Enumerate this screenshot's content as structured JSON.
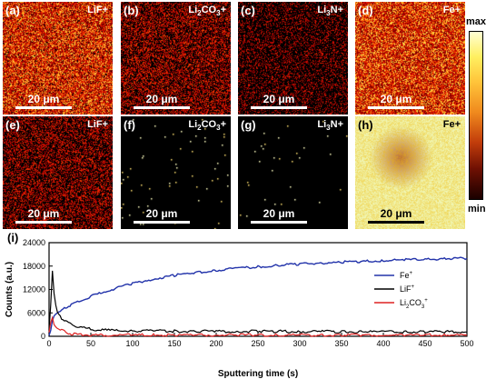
{
  "colorbar": {
    "max_label": "max",
    "min_label": "min"
  },
  "maps": [
    {
      "label": "(a)",
      "ion": "LiF+",
      "ion_html": "LiF+",
      "scale": "20 μm",
      "density": 0.95,
      "mode": "hot",
      "dark_text": false
    },
    {
      "label": "(b)",
      "ion": "Li2CO3+",
      "ion_html": "Li<sub style='font-size:8px'>2</sub>CO<sub style='font-size:8px'>3</sub>+",
      "scale": "20 μm",
      "density": 0.55,
      "mode": "hot",
      "dark_text": false
    },
    {
      "label": "(c)",
      "ion": "Li3N+",
      "ion_html": "Li<sub style='font-size:8px'>3</sub>N+",
      "scale": "20 μm",
      "density": 0.35,
      "mode": "hot",
      "dark_text": false
    },
    {
      "label": "(d)",
      "ion": "Fe+",
      "ion_html": "Fe+",
      "scale": "20 μm",
      "density": 1.0,
      "mode": "hot",
      "dark_text": false
    },
    {
      "label": "(e)",
      "ion": "LiF+",
      "ion_html": "LiF+",
      "scale": "20 μm",
      "density": 0.5,
      "mode": "hot",
      "dark_text": false
    },
    {
      "label": "(f)",
      "ion": "Li2CO3+",
      "ion_html": "Li<sub style='font-size:8px'>2</sub>CO<sub style='font-size:8px'>3</sub>+",
      "scale": "20 μm",
      "density": 0.004,
      "mode": "sparse",
      "dark_text": false
    },
    {
      "label": "(g)",
      "ion": "Li3N+",
      "ion_html": "Li<sub style='font-size:8px'>3</sub>N+",
      "scale": "20 μm",
      "density": 0.002,
      "mode": "sparse",
      "dark_text": false
    },
    {
      "label": "(h)",
      "ion": "Fe+",
      "ion_html": "Fe+",
      "scale": "20 μm",
      "density": 1.0,
      "mode": "bright",
      "dark_text": true
    }
  ],
  "chart_data": {
    "type": "line",
    "panel_label": "(i)",
    "xlabel": "Sputtering time (s)",
    "ylabel": "Counts (a.u.)",
    "xlim": [
      0,
      500
    ],
    "ylim": [
      0,
      24000
    ],
    "xticks": [
      0,
      50,
      100,
      150,
      200,
      250,
      300,
      350,
      400,
      450,
      500
    ],
    "yticks": [
      0,
      6000,
      12000,
      18000,
      24000
    ],
    "legend_position": "right",
    "x": [
      0,
      2,
      4,
      6,
      8,
      10,
      15,
      20,
      25,
      30,
      40,
      50,
      60,
      75,
      100,
      125,
      150,
      175,
      200,
      225,
      250,
      275,
      300,
      325,
      350,
      375,
      400,
      425,
      450,
      475,
      500
    ],
    "series": [
      {
        "name": "Fe+",
        "color": "#2233aa",
        "values": [
          200,
          1500,
          4000,
          5200,
          5700,
          6000,
          6700,
          7300,
          7900,
          8400,
          9300,
          10200,
          11000,
          12000,
          13500,
          14700,
          15600,
          16300,
          16900,
          17400,
          17800,
          18200,
          18500,
          18800,
          19000,
          19200,
          19400,
          19600,
          19750,
          19900,
          20000
        ]
      },
      {
        "name": "LiF+",
        "color": "#000000",
        "values": [
          1500,
          8000,
          16800,
          11000,
          8000,
          6200,
          4500,
          3800,
          3200,
          2800,
          2200,
          1800,
          1600,
          1500,
          1400,
          1350,
          1300,
          1300,
          1250,
          1250,
          1300,
          1250,
          1200,
          1200,
          1200,
          1200,
          1150,
          1150,
          1150,
          1150,
          1100
        ]
      },
      {
        "name": "Li2CO3+",
        "color": "#dd2222",
        "values": [
          1000,
          3500,
          4800,
          3000,
          2400,
          2000,
          1500,
          1000,
          700,
          500,
          400,
          300,
          300,
          300,
          300,
          300,
          300,
          300,
          300,
          300,
          300,
          300,
          300,
          300,
          300,
          300,
          300,
          300,
          300,
          300,
          300
        ]
      }
    ]
  }
}
